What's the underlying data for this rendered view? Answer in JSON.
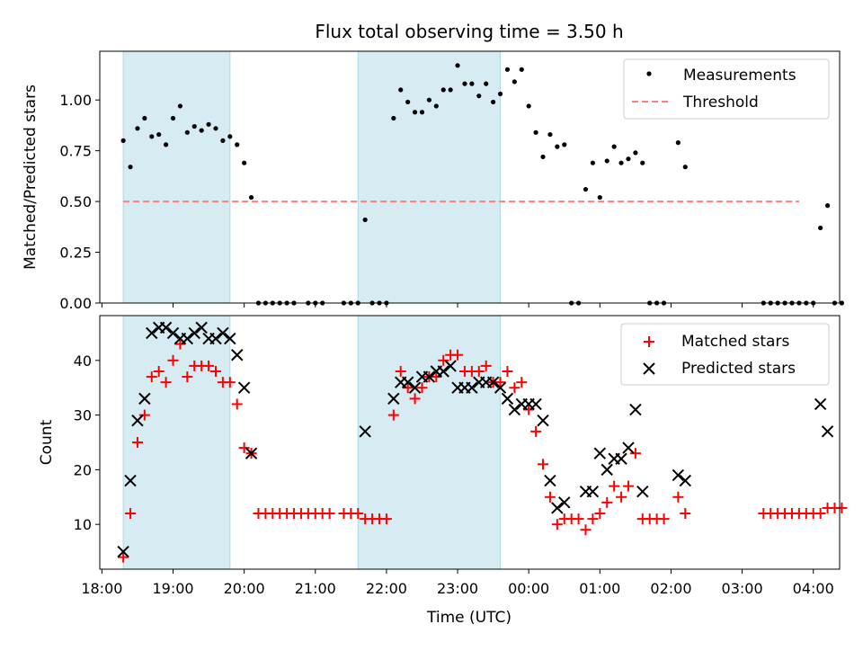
{
  "figure": {
    "title": "Flux total observing time = 3.50 h"
  },
  "chart_data": [
    {
      "type": "scatter",
      "panel": "top",
      "title": "Flux total observing time = 3.50 h",
      "xlabel": "",
      "ylabel": "Matched/Predicted stars",
      "xlim_hours": [
        17.97,
        28.37
      ],
      "ylim": [
        0,
        1.24
      ],
      "yticks": [
        0.0,
        0.25,
        0.5,
        0.75,
        1.0
      ],
      "ytick_labels": [
        "0.00",
        "0.25",
        "0.50",
        "0.75",
        "1.00"
      ],
      "grid": false,
      "legend_position": "top-right",
      "shaded_intervals": [
        [
          "18:18",
          "19:48"
        ],
        [
          "21:36",
          "23:36"
        ]
      ],
      "threshold": {
        "name": "Threshold",
        "value": 0.5,
        "x": [
          "18:18",
          "27:48"
        ],
        "color": "#ff7f7f",
        "style": "dashed"
      },
      "series": [
        {
          "name": "Measurements",
          "color": "#000000",
          "marker": "dot",
          "points": [
            [
              "18:18",
              0.8
            ],
            [
              "18:24",
              0.67
            ],
            [
              "18:30",
              0.86
            ],
            [
              "18:36",
              0.91
            ],
            [
              "18:42",
              0.82
            ],
            [
              "18:48",
              0.83
            ],
            [
              "18:54",
              0.78
            ],
            [
              "19:00",
              0.91
            ],
            [
              "19:06",
              0.97
            ],
            [
              "19:12",
              0.84
            ],
            [
              "19:18",
              0.87
            ],
            [
              "19:24",
              0.85
            ],
            [
              "19:30",
              0.88
            ],
            [
              "19:36",
              0.86
            ],
            [
              "19:42",
              0.8
            ],
            [
              "19:48",
              0.82
            ],
            [
              "19:54",
              0.78
            ],
            [
              "20:00",
              0.69
            ],
            [
              "20:06",
              0.52
            ],
            [
              "20:12",
              0.0
            ],
            [
              "20:18",
              0.0
            ],
            [
              "20:24",
              0.0
            ],
            [
              "20:30",
              0.0
            ],
            [
              "20:36",
              0.0
            ],
            [
              "20:42",
              0.0
            ],
            [
              "20:54",
              0.0
            ],
            [
              "21:00",
              0.0
            ],
            [
              "21:06",
              0.0
            ],
            [
              "21:24",
              0.0
            ],
            [
              "21:30",
              0.0
            ],
            [
              "21:36",
              0.0
            ],
            [
              "21:42",
              0.41
            ],
            [
              "21:48",
              0.0
            ],
            [
              "21:54",
              0.0
            ],
            [
              "22:00",
              0.0
            ],
            [
              "22:06",
              0.91
            ],
            [
              "22:12",
              1.05
            ],
            [
              "22:18",
              0.99
            ],
            [
              "22:24",
              0.94
            ],
            [
              "22:30",
              0.94
            ],
            [
              "22:36",
              1.0
            ],
            [
              "22:42",
              0.97
            ],
            [
              "22:48",
              1.05
            ],
            [
              "22:54",
              1.05
            ],
            [
              "23:00",
              1.17
            ],
            [
              "23:06",
              1.08
            ],
            [
              "23:12",
              1.08
            ],
            [
              "23:18",
              1.02
            ],
            [
              "23:24",
              1.08
            ],
            [
              "23:30",
              0.99
            ],
            [
              "23:36",
              1.03
            ],
            [
              "23:42",
              1.15
            ],
            [
              "23:48",
              1.09
            ],
            [
              "23:54",
              1.15
            ],
            [
              "24:00",
              0.97
            ],
            [
              "24:06",
              0.84
            ],
            [
              "24:12",
              0.72
            ],
            [
              "24:18",
              0.83
            ],
            [
              "24:24",
              0.77
            ],
            [
              "24:30",
              0.78
            ],
            [
              "24:36",
              0.0
            ],
            [
              "24:42",
              0.0
            ],
            [
              "24:48",
              0.56
            ],
            [
              "24:54",
              0.69
            ],
            [
              "25:00",
              0.52
            ],
            [
              "25:06",
              0.7
            ],
            [
              "25:12",
              0.77
            ],
            [
              "25:18",
              0.69
            ],
            [
              "25:24",
              0.71
            ],
            [
              "25:30",
              0.74
            ],
            [
              "25:36",
              0.69
            ],
            [
              "25:42",
              0.0
            ],
            [
              "25:48",
              0.0
            ],
            [
              "25:54",
              0.0
            ],
            [
              "26:06",
              0.79
            ],
            [
              "26:12",
              0.67
            ],
            [
              "27:18",
              0.0
            ],
            [
              "27:24",
              0.0
            ],
            [
              "27:30",
              0.0
            ],
            [
              "27:36",
              0.0
            ],
            [
              "27:42",
              0.0
            ],
            [
              "27:48",
              0.0
            ],
            [
              "27:54",
              0.0
            ],
            [
              "28:00",
              0.0
            ],
            [
              "28:06",
              0.37
            ],
            [
              "28:12",
              0.48
            ],
            [
              "28:18",
              0.0
            ],
            [
              "28:24",
              0.0
            ]
          ]
        }
      ]
    },
    {
      "type": "scatter",
      "panel": "bottom",
      "title": "",
      "xlabel": "Time (UTC)",
      "ylabel": "Count",
      "xlim_hours": [
        17.97,
        28.37
      ],
      "ylim": [
        1.8,
        48.2
      ],
      "yticks": [
        10,
        20,
        30,
        40
      ],
      "ytick_labels": [
        "10",
        "20",
        "30",
        "40"
      ],
      "xticks_hours": [
        18,
        19,
        20,
        21,
        22,
        23,
        24,
        25,
        26,
        27,
        28
      ],
      "xtick_labels": [
        "18:00",
        "19:00",
        "20:00",
        "21:00",
        "22:00",
        "23:00",
        "00:00",
        "01:00",
        "02:00",
        "03:00",
        "04:00"
      ],
      "grid": false,
      "legend_position": "top-right",
      "shaded_intervals": [
        [
          "18:18",
          "19:48"
        ],
        [
          "21:36",
          "23:36"
        ]
      ],
      "series": [
        {
          "name": "Matched stars",
          "color": "#ff0000",
          "marker": "plus",
          "points": [
            [
              "18:18",
              4
            ],
            [
              "18:24",
              12
            ],
            [
              "18:30",
              25
            ],
            [
              "18:36",
              30
            ],
            [
              "18:42",
              37
            ],
            [
              "18:48",
              38
            ],
            [
              "18:54",
              36
            ],
            [
              "19:00",
              40
            ],
            [
              "19:06",
              43
            ],
            [
              "19:12",
              37
            ],
            [
              "19:18",
              39
            ],
            [
              "19:24",
              39
            ],
            [
              "19:30",
              39
            ],
            [
              "19:36",
              38
            ],
            [
              "19:42",
              36
            ],
            [
              "19:48",
              36
            ],
            [
              "19:54",
              32
            ],
            [
              "20:00",
              24
            ],
            [
              "20:06",
              23
            ],
            [
              "20:12",
              12
            ],
            [
              "20:18",
              12
            ],
            [
              "20:24",
              12
            ],
            [
              "20:30",
              12
            ],
            [
              "20:36",
              12
            ],
            [
              "20:42",
              12
            ],
            [
              "20:48",
              12
            ],
            [
              "20:54",
              12
            ],
            [
              "21:00",
              12
            ],
            [
              "21:06",
              12
            ],
            [
              "21:12",
              12
            ],
            [
              "21:24",
              12
            ],
            [
              "21:30",
              12
            ],
            [
              "21:36",
              12
            ],
            [
              "21:42",
              11
            ],
            [
              "21:48",
              11
            ],
            [
              "21:54",
              11
            ],
            [
              "22:00",
              11
            ],
            [
              "22:06",
              30
            ],
            [
              "22:12",
              38
            ],
            [
              "22:18",
              35
            ],
            [
              "22:24",
              33
            ],
            [
              "22:30",
              35
            ],
            [
              "22:36",
              37
            ],
            [
              "22:42",
              37
            ],
            [
              "22:48",
              40
            ],
            [
              "22:54",
              41
            ],
            [
              "23:00",
              41
            ],
            [
              "23:06",
              38
            ],
            [
              "23:12",
              38
            ],
            [
              "23:18",
              38
            ],
            [
              "23:24",
              39
            ],
            [
              "23:30",
              36
            ],
            [
              "23:36",
              36
            ],
            [
              "23:42",
              38
            ],
            [
              "23:48",
              35
            ],
            [
              "23:54",
              36
            ],
            [
              "24:00",
              31
            ],
            [
              "24:06",
              27
            ],
            [
              "24:12",
              21
            ],
            [
              "24:18",
              15
            ],
            [
              "24:24",
              10
            ],
            [
              "24:30",
              11
            ],
            [
              "24:36",
              11
            ],
            [
              "24:42",
              11
            ],
            [
              "24:48",
              9
            ],
            [
              "24:54",
              11
            ],
            [
              "25:00",
              12
            ],
            [
              "25:06",
              14
            ],
            [
              "25:12",
              17
            ],
            [
              "25:18",
              15
            ],
            [
              "25:24",
              17
            ],
            [
              "25:30",
              23
            ],
            [
              "25:36",
              11
            ],
            [
              "25:42",
              11
            ],
            [
              "25:48",
              11
            ],
            [
              "25:54",
              11
            ],
            [
              "26:06",
              15
            ],
            [
              "26:12",
              12
            ],
            [
              "27:18",
              12
            ],
            [
              "27:24",
              12
            ],
            [
              "27:30",
              12
            ],
            [
              "27:36",
              12
            ],
            [
              "27:42",
              12
            ],
            [
              "27:48",
              12
            ],
            [
              "27:54",
              12
            ],
            [
              "28:00",
              12
            ],
            [
              "28:06",
              12
            ],
            [
              "28:12",
              13
            ],
            [
              "28:18",
              13
            ],
            [
              "28:24",
              13
            ]
          ]
        },
        {
          "name": "Predicted stars",
          "color": "#000000",
          "marker": "cross",
          "points": [
            [
              "18:18",
              5
            ],
            [
              "18:24",
              18
            ],
            [
              "18:30",
              29
            ],
            [
              "18:36",
              33
            ],
            [
              "18:42",
              45
            ],
            [
              "18:48",
              46
            ],
            [
              "18:54",
              46
            ],
            [
              "19:00",
              45
            ],
            [
              "19:06",
              44
            ],
            [
              "19:12",
              44
            ],
            [
              "19:18",
              45
            ],
            [
              "19:24",
              46
            ],
            [
              "19:30",
              44
            ],
            [
              "19:36",
              44
            ],
            [
              "19:42",
              45
            ],
            [
              "19:48",
              44
            ],
            [
              "19:54",
              41
            ],
            [
              "20:00",
              35
            ],
            [
              "20:06",
              23
            ],
            [
              "21:42",
              27
            ],
            [
              "22:06",
              33
            ],
            [
              "22:12",
              36
            ],
            [
              "22:18",
              36
            ],
            [
              "22:24",
              35
            ],
            [
              "22:30",
              37
            ],
            [
              "22:36",
              37
            ],
            [
              "22:42",
              38
            ],
            [
              "22:48",
              38
            ],
            [
              "22:54",
              39
            ],
            [
              "23:00",
              35
            ],
            [
              "23:06",
              35
            ],
            [
              "23:12",
              35
            ],
            [
              "23:18",
              36
            ],
            [
              "23:24",
              36
            ],
            [
              "23:30",
              36
            ],
            [
              "23:36",
              35
            ],
            [
              "23:42",
              33
            ],
            [
              "23:48",
              31
            ],
            [
              "23:54",
              32
            ],
            [
              "24:00",
              32
            ],
            [
              "24:06",
              32
            ],
            [
              "24:12",
              29
            ],
            [
              "24:18",
              18
            ],
            [
              "24:24",
              13
            ],
            [
              "24:30",
              14
            ],
            [
              "24:48",
              16
            ],
            [
              "24:54",
              16
            ],
            [
              "25:00",
              23
            ],
            [
              "25:06",
              20
            ],
            [
              "25:12",
              22
            ],
            [
              "25:18",
              22
            ],
            [
              "25:24",
              24
            ],
            [
              "25:30",
              31
            ],
            [
              "25:36",
              16
            ],
            [
              "26:06",
              19
            ],
            [
              "26:12",
              18
            ],
            [
              "28:06",
              32
            ],
            [
              "28:12",
              27
            ]
          ]
        }
      ]
    }
  ]
}
